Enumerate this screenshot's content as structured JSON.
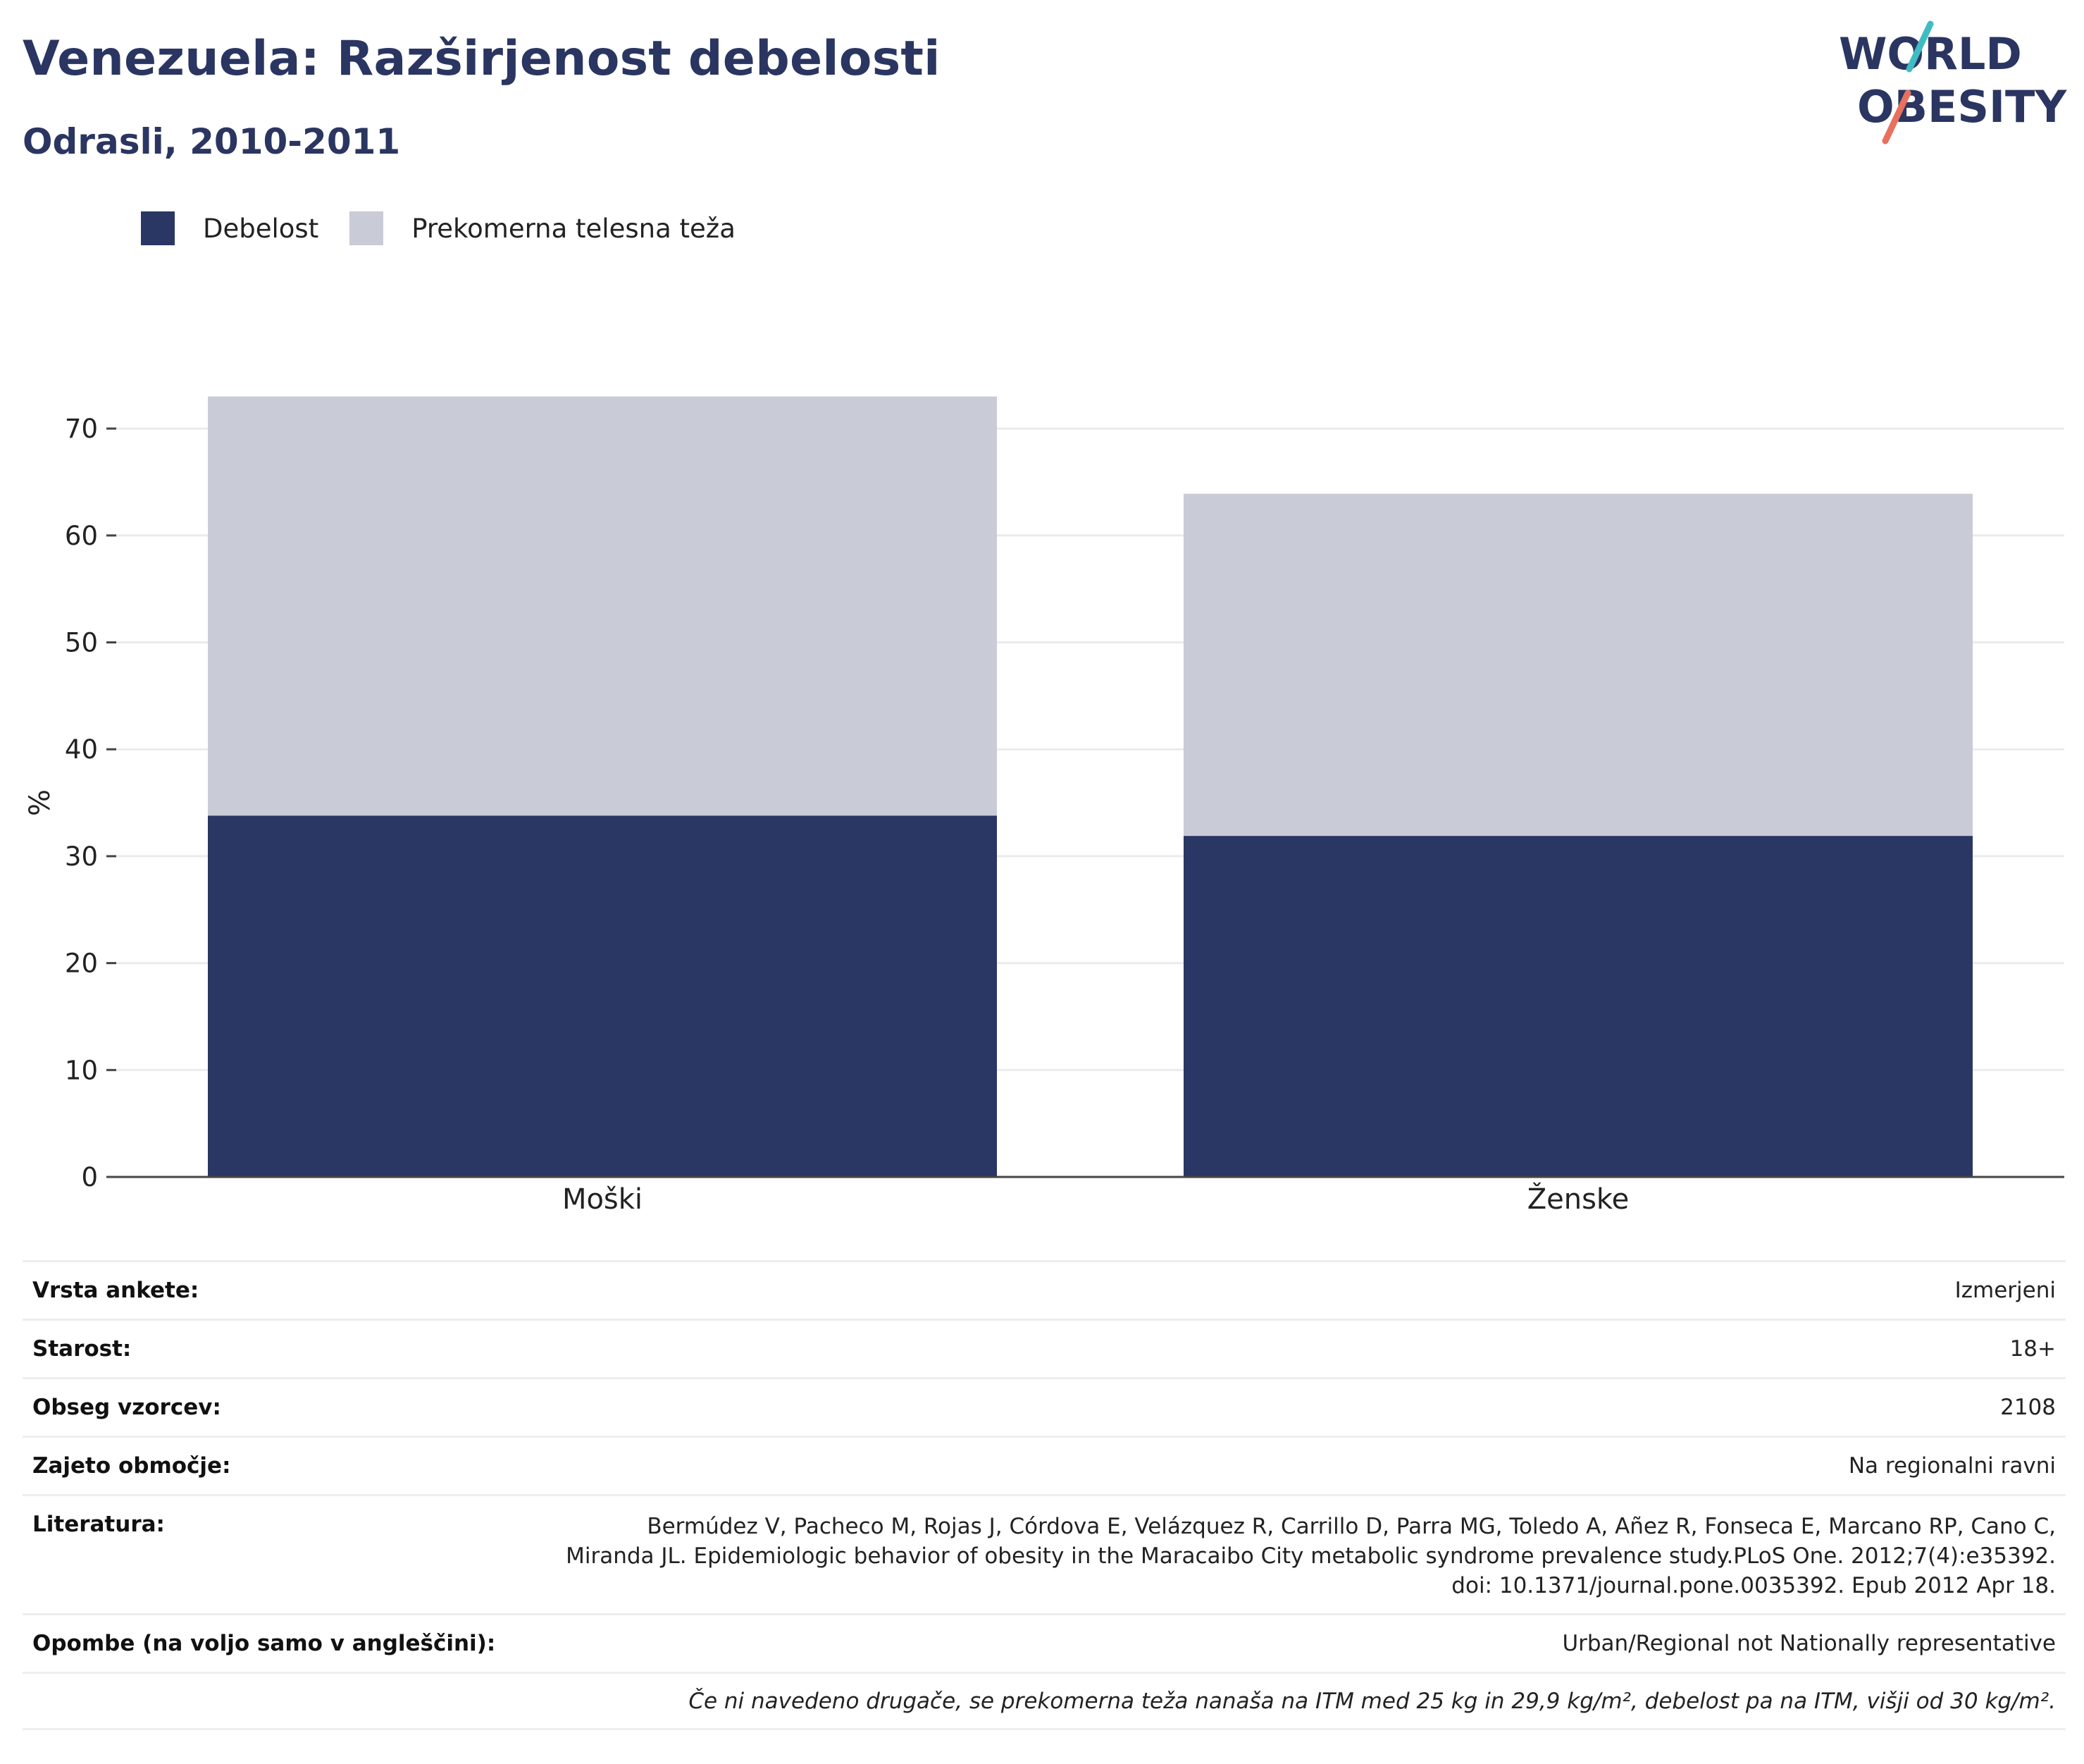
{
  "title": "Venezuela: Razširjenost debelosti",
  "subtitle": "Odrasli, 2010-2011",
  "logo": {
    "line1": "WORLD",
    "line2": "OBESITY"
  },
  "legend": [
    {
      "label": "Debelost",
      "color": "#2a3663"
    },
    {
      "label": "Prekomerna telesna teža",
      "color": "#c9cbd6"
    }
  ],
  "chart_data": {
    "type": "bar",
    "stacked": true,
    "categories": [
      "Moški",
      "Ženske"
    ],
    "series": [
      {
        "name": "Debelost",
        "color": "#2a3663",
        "values": [
          33.8,
          31.9
        ]
      },
      {
        "name": "Prekomerna telesna teža",
        "color": "#c9cbd6",
        "values": [
          39.2,
          32.0
        ]
      }
    ],
    "ylabel": "%",
    "ylim": [
      0,
      73
    ],
    "yticks": [
      0,
      10,
      20,
      30,
      40,
      50,
      60,
      70
    ],
    "grid": true,
    "legend_position": "top-left"
  },
  "table": {
    "survey_type": {
      "label": "Vrsta ankete:",
      "value": "Izmerjeni"
    },
    "age": {
      "label": "Starost:",
      "value": "18+"
    },
    "sample_size": {
      "label": "Obseg vzorcev:",
      "value": "2108"
    },
    "area": {
      "label": "Zajeto območje:",
      "value": "Na regionalni ravni"
    },
    "references": {
      "label": "Literatura:",
      "lines": [
        "Bermúdez V, Pacheco M, Rojas J, Córdova E, Velázquez R, Carrillo D, Parra MG, Toledo A, Añez R, Fonseca E, Marcano RP, Cano C,",
        "Miranda JL. Epidemiologic behavior of obesity in the Maracaibo City metabolic syndrome prevalence study.PLoS One. 2012;7(4):e35392.",
        "doi: 10.1371/journal.pone.0035392. Epub 2012 Apr 18."
      ]
    },
    "notes": {
      "label": "Opombe (na voljo samo v angleščini):",
      "value": "Urban/Regional not Nationally representative"
    },
    "footnote": "Če ni navedeno drugače, se prekomerna teža nanaša na ITM med 25 kg in 29,9 kg/m², debelost pa na ITM, višji od 30 kg/m²."
  }
}
